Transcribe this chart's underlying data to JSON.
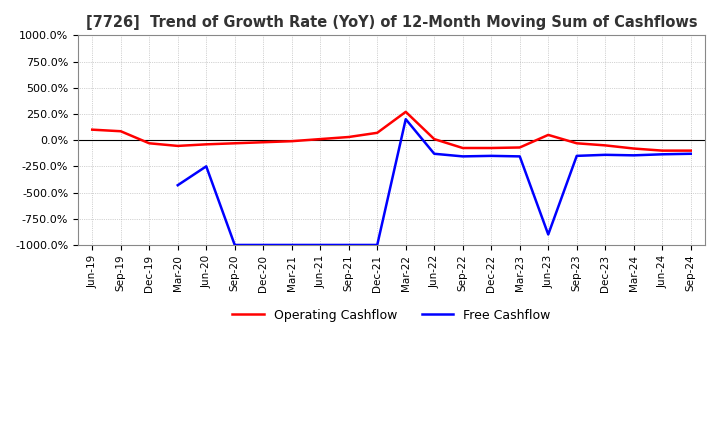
{
  "title": "[7726]  Trend of Growth Rate (YoY) of 12-Month Moving Sum of Cashflows",
  "ylim": [
    -1000,
    1000
  ],
  "yticks": [
    -1000,
    -750,
    -500,
    -250,
    0,
    250,
    500,
    750,
    1000
  ],
  "ytick_labels": [
    "-1000.0%",
    "-750.0%",
    "-500.0%",
    "-250.0%",
    "0.0%",
    "250.0%",
    "500.0%",
    "750.0%",
    "1000.0%"
  ],
  "xtick_labels": [
    "Jun-19",
    "Sep-19",
    "Dec-19",
    "Mar-20",
    "Jun-20",
    "Sep-20",
    "Dec-20",
    "Mar-21",
    "Jun-21",
    "Sep-21",
    "Dec-21",
    "Mar-22",
    "Jun-22",
    "Sep-22",
    "Dec-22",
    "Mar-23",
    "Jun-23",
    "Sep-23",
    "Dec-23",
    "Mar-24",
    "Jun-24",
    "Sep-24"
  ],
  "operating_cashflow": [
    100,
    85,
    -30,
    -55,
    -40,
    -30,
    -20,
    -10,
    10,
    30,
    70,
    270,
    10,
    -75,
    -75,
    -70,
    50,
    -30,
    -50,
    -80,
    -100,
    -100
  ],
  "free_cashflow": [
    null,
    null,
    null,
    -430,
    -250,
    -1000,
    -1000,
    -1000,
    -1000,
    -1000,
    -1000,
    200,
    -130,
    -155,
    -150,
    -155,
    -900,
    -150,
    -140,
    -145,
    -135,
    -130
  ],
  "operating_color": "#ff0000",
  "free_color": "#0000ff",
  "background_color": "#ffffff",
  "plot_bg_color": "#ffffff",
  "grid_color": "#aaaaaa",
  "title_color": "#333333",
  "legend_labels": [
    "Operating Cashflow",
    "Free Cashflow"
  ],
  "line_width": 1.8
}
